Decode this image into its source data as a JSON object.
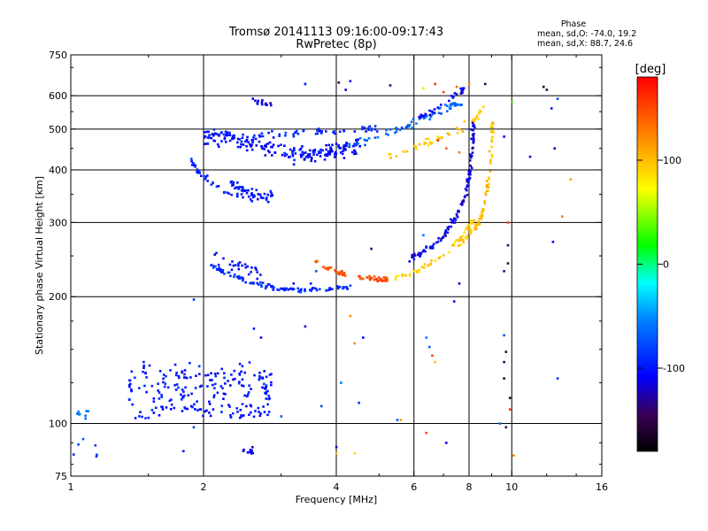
{
  "chart_data": {
    "type": "scatter",
    "title": "Tromsø 20141113 09:16:00-09:17:43",
    "subtitle": "RwPretec (8p)",
    "xlabel": "Frequency [MHz]",
    "ylabel": "Stationary phase Virtual Height [km]",
    "x_scale": "log",
    "y_scale": "log",
    "xlim": [
      1,
      16
    ],
    "ylim": [
      75,
      750
    ],
    "x_ticks": [
      {
        "value": 1,
        "label": "1"
      },
      {
        "value": 2,
        "label": "2"
      },
      {
        "value": 4,
        "label": "4"
      },
      {
        "value": 6,
        "label": "6"
      },
      {
        "value": 8,
        "label": "8"
      },
      {
        "value": 10,
        "label": "10"
      },
      {
        "value": 16,
        "label": "16"
      }
    ],
    "y_ticks": [
      {
        "value": 75,
        "label": "75"
      },
      {
        "value": 100,
        "label": "100"
      },
      {
        "value": 200,
        "label": "200"
      },
      {
        "value": 300,
        "label": "300"
      },
      {
        "value": 400,
        "label": "400"
      },
      {
        "value": 500,
        "label": "500"
      },
      {
        "value": 600,
        "label": "600"
      },
      {
        "value": 750,
        "label": "750"
      }
    ],
    "gridlines_x": [
      2,
      4,
      6,
      8,
      10
    ],
    "gridlines_y": [
      100,
      200,
      300,
      400,
      500,
      600
    ],
    "stats": {
      "heading": "Phase",
      "line_o": "mean, sd,O: -74.0, 19.2",
      "line_x": "mean, sd,X:  88.7, 24.6"
    },
    "colorbar": {
      "label": "[deg]",
      "min": -180,
      "max": 180,
      "ticks": [
        {
          "value": 100,
          "label": "100"
        },
        {
          "value": 0,
          "label": "0"
        },
        {
          "value": -100,
          "label": "-100"
        }
      ]
    },
    "series": [
      {
        "shape": "curve",
        "points": [
          [
            2.55,
            590
          ],
          [
            2.7,
            575
          ],
          [
            2.85,
            565
          ]
        ],
        "phase": -115,
        "count": 14,
        "spread": 0.02
      },
      {
        "shape": "curve",
        "points": [
          [
            2.0,
            480
          ],
          [
            2.4,
            470
          ],
          [
            2.8,
            450
          ],
          [
            3.2,
            438
          ],
          [
            3.6,
            438
          ],
          [
            4.0,
            445
          ],
          [
            4.5,
            455
          ]
        ],
        "phase": -105,
        "count": 200,
        "spread": 0.045
      },
      {
        "shape": "curve",
        "points": [
          [
            2.1,
            490
          ],
          [
            2.6,
            480
          ],
          [
            3.2,
            490
          ],
          [
            3.8,
            495
          ],
          [
            4.5,
            500
          ],
          [
            5.0,
            505
          ]
        ],
        "phase": -95,
        "count": 60,
        "spread": 0.02
      },
      {
        "shape": "curve",
        "points": [
          [
            4.2,
            455
          ],
          [
            4.8,
            475
          ],
          [
            5.4,
            495
          ],
          [
            6.0,
            515
          ],
          [
            6.6,
            540
          ],
          [
            7.2,
            565
          ],
          [
            7.7,
            580
          ]
        ],
        "phase": -65,
        "count": 70,
        "spread": 0.02
      },
      {
        "shape": "curve",
        "points": [
          [
            6.0,
            530
          ],
          [
            6.8,
            560
          ],
          [
            7.4,
            600
          ],
          [
            7.8,
            625
          ]
        ],
        "phase": -110,
        "count": 30,
        "spread": 0.02
      },
      {
        "shape": "curve",
        "points": [
          [
            5.2,
            430
          ],
          [
            6.0,
            450
          ],
          [
            6.8,
            475
          ],
          [
            7.6,
            500
          ],
          [
            8.2,
            525
          ],
          [
            8.6,
            560
          ]
        ],
        "phase": 95,
        "count": 45,
        "spread": 0.02
      },
      {
        "shape": "curve",
        "points": [
          [
            1.87,
            425
          ],
          [
            1.95,
            395
          ],
          [
            2.1,
            370
          ],
          [
            2.3,
            350
          ],
          [
            2.6,
            340
          ]
        ],
        "phase": -95,
        "count": 40,
        "spread": 0.015
      },
      {
        "shape": "curve",
        "points": [
          [
            2.3,
            370
          ],
          [
            2.5,
            355
          ],
          [
            2.7,
            345
          ],
          [
            2.9,
            345
          ]
        ],
        "phase": -100,
        "count": 50,
        "spread": 0.03
      },
      {
        "shape": "curve",
        "points": [
          [
            2.05,
            240
          ],
          [
            2.3,
            225
          ],
          [
            2.6,
            215
          ],
          [
            2.9,
            210
          ],
          [
            3.3,
            207
          ],
          [
            3.8,
            208
          ],
          [
            4.3,
            212
          ]
        ],
        "phase": -90,
        "count": 110,
        "spread": 0.012
      },
      {
        "shape": "curve",
        "points": [
          [
            2.1,
            250
          ],
          [
            2.3,
            240
          ],
          [
            2.5,
            232
          ],
          [
            2.7,
            228
          ]
        ],
        "phase": -105,
        "count": 25,
        "spread": 0.03
      },
      {
        "shape": "curve",
        "points": [
          [
            3.5,
            245
          ],
          [
            3.9,
            232
          ],
          [
            4.3,
            224
          ],
          [
            4.8,
            220
          ],
          [
            5.3,
            220
          ]
        ],
        "phase": 150,
        "count": 60,
        "spread": 0.012
      },
      {
        "shape": "curve",
        "points": [
          [
            5.3,
            220
          ],
          [
            6.0,
            228
          ],
          [
            6.6,
            240
          ],
          [
            7.2,
            260
          ],
          [
            7.8,
            285
          ],
          [
            8.2,
            305
          ]
        ],
        "phase": 90,
        "count": 55,
        "spread": 0.015
      },
      {
        "shape": "curve",
        "points": [
          [
            5.8,
            245
          ],
          [
            6.5,
            260
          ],
          [
            7.0,
            280
          ],
          [
            7.5,
            310
          ],
          [
            7.8,
            340
          ],
          [
            8.0,
            380
          ],
          [
            8.1,
            440
          ],
          [
            8.2,
            520
          ]
        ],
        "phase": -115,
        "count": 120,
        "spread": 0.02
      },
      {
        "shape": "curve",
        "points": [
          [
            7.5,
            265
          ],
          [
            8.1,
            285
          ],
          [
            8.5,
            305
          ],
          [
            8.7,
            340
          ],
          [
            8.9,
            390
          ],
          [
            9.0,
            450
          ],
          [
            9.05,
            530
          ]
        ],
        "phase": 100,
        "count": 80,
        "spread": 0.02
      },
      {
        "shape": "cloud",
        "xlim": [
          1.35,
          2.85
        ],
        "ylim": [
          103,
          140
        ],
        "phase": -100,
        "count": 220
      },
      {
        "shape": "cloud",
        "xlim": [
          1.0,
          1.1
        ],
        "ylim": [
          102,
          108
        ],
        "phase": -65,
        "count": 8
      },
      {
        "shape": "cloud",
        "xlim": [
          2.45,
          2.6
        ],
        "ylim": [
          84,
          88
        ],
        "phase": -110,
        "count": 10
      },
      {
        "shape": "cloud",
        "xlim": [
          1.0,
          1.15
        ],
        "ylim": [
          82,
          92
        ],
        "phase": -80,
        "count": 6
      },
      {
        "shape": "scatter",
        "points": [
          [
            4.05,
            645
          ],
          [
            4.2,
            620
          ],
          [
            4.3,
            650
          ],
          [
            3.4,
            640
          ],
          [
            6.3,
            625
          ],
          [
            6.7,
            640
          ],
          [
            7.0,
            612
          ],
          [
            7.5,
            630
          ],
          [
            8.0,
            640
          ],
          [
            8.7,
            640
          ],
          [
            11.8,
            630
          ],
          [
            12.7,
            590
          ],
          [
            12.3,
            560
          ],
          [
            12.5,
            450
          ],
          [
            12.0,
            620
          ],
          [
            10.0,
            580
          ],
          [
            9.6,
            480
          ],
          [
            11.0,
            430
          ],
          [
            13.6,
            380
          ],
          [
            13.0,
            310
          ],
          [
            12.4,
            270
          ],
          [
            9.8,
            300
          ],
          [
            9.6,
            230
          ],
          [
            9.8,
            265
          ],
          [
            9.8,
            240
          ],
          [
            7.6,
            440
          ],
          [
            7.1,
            450
          ],
          [
            6.8,
            470
          ],
          [
            6.4,
            160
          ],
          [
            6.5,
            152
          ],
          [
            6.6,
            145
          ],
          [
            6.7,
            140
          ],
          [
            7.4,
            195
          ],
          [
            7.6,
            215
          ],
          [
            7.2,
            255
          ],
          [
            6.3,
            280
          ],
          [
            4.8,
            260
          ],
          [
            3.5,
            215
          ],
          [
            3.2,
            215
          ],
          [
            4.1,
            125
          ],
          [
            4.4,
            155
          ],
          [
            4.6,
            160
          ],
          [
            3.4,
            170
          ],
          [
            4.5,
            112
          ],
          [
            3.7,
            110
          ],
          [
            3.0,
            104
          ],
          [
            4.0,
            88
          ],
          [
            4.0,
            85
          ],
          [
            4.4,
            85
          ],
          [
            5.6,
            102
          ],
          [
            5.5,
            102
          ],
          [
            9.6,
            162
          ],
          [
            9.7,
            148
          ],
          [
            9.6,
            140
          ],
          [
            9.6,
            128
          ],
          [
            9.9,
            115
          ],
          [
            9.9,
            108
          ],
          [
            9.7,
            98
          ],
          [
            9.4,
            100
          ],
          [
            6.4,
            95
          ],
          [
            7.1,
            90
          ],
          [
            10.1,
            84
          ],
          [
            12.7,
            128
          ],
          [
            1.8,
            86
          ],
          [
            1.9,
            197
          ],
          [
            1.9,
            98
          ],
          [
            5.3,
            635
          ],
          [
            3.6,
            230
          ],
          [
            2.6,
            168
          ],
          [
            2.7,
            160
          ],
          [
            4.3,
            180
          ]
        ],
        "phases": [
          -140,
          -120,
          -115,
          -100,
          60,
          160,
          150,
          140,
          120,
          -150,
          -160,
          -80,
          -100,
          -120,
          -150,
          30,
          -110,
          -120,
          110,
          130,
          -110,
          150,
          -130,
          -140,
          -150,
          130,
          140,
          160,
          -60,
          -70,
          150,
          100,
          -110,
          -120,
          80,
          -60,
          -130,
          -100,
          -110,
          -60,
          120,
          -100,
          -120,
          -90,
          -80,
          -70,
          -120,
          100,
          90,
          110,
          -70,
          -70,
          -150,
          -150,
          -160,
          -160,
          160,
          -150,
          -60,
          150,
          -110,
          120,
          -90,
          -100,
          -90,
          -80,
          -130,
          -70,
          -100,
          -110,
          120
        ]
      }
    ]
  }
}
